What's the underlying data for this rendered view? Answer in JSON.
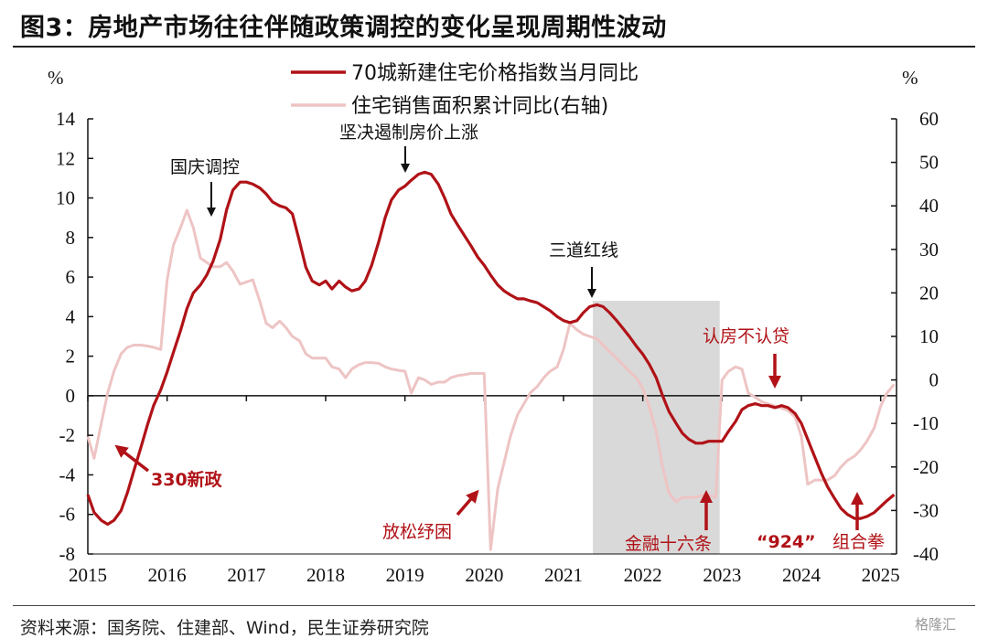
{
  "title": "图3：房地产市场往往伴随政策调控的变化呈现周期性波动",
  "source": "资料来源：国务院、住建部、Wind，民生证券研究院",
  "watermark": "格隆汇",
  "colors": {
    "primary": "#b01217",
    "secondary": "#eec4c4",
    "shade": "#d9d9d9",
    "axis": "#111111"
  },
  "chart_data": {
    "type": "line",
    "title": "图3：房地产市场往往伴随政策调控的变化呈现周期性波动",
    "left_unit": "%",
    "right_unit": "%",
    "left_ylim": [
      -8,
      14
    ],
    "right_ylim": [
      -40,
      60
    ],
    "left_ticks": [
      14,
      12,
      10,
      8,
      6,
      4,
      2,
      0,
      -2,
      -4,
      -6,
      -8
    ],
    "right_ticks": [
      60,
      50,
      40,
      30,
      20,
      10,
      0,
      -10,
      -20,
      -30,
      -40
    ],
    "xlim": [
      2015,
      2025.2
    ],
    "x_ticks": [
      2015,
      2016,
      2017,
      2018,
      2019,
      2020,
      2021,
      2022,
      2023,
      2024,
      2025
    ],
    "x_tick_labels": [
      "2015",
      "2016",
      "2017",
      "2018",
      "2019",
      "2020",
      "2021",
      "2022",
      "2023",
      "2024",
      "2025"
    ],
    "shaded_region": [
      2021.37,
      2022.97
    ],
    "series": [
      {
        "name": "70城新建住宅价格指数当月同比",
        "axis": "left",
        "color": "#b01217",
        "points": [
          [
            2015.0,
            -5.0
          ],
          [
            2015.08,
            -5.9
          ],
          [
            2015.17,
            -6.3
          ],
          [
            2015.25,
            -6.5
          ],
          [
            2015.33,
            -6.3
          ],
          [
            2015.42,
            -5.8
          ],
          [
            2015.5,
            -4.9
          ],
          [
            2015.58,
            -3.8
          ],
          [
            2015.67,
            -2.6
          ],
          [
            2015.75,
            -1.5
          ],
          [
            2015.83,
            -0.5
          ],
          [
            2015.92,
            0.3
          ],
          [
            2016.0,
            1.2
          ],
          [
            2016.08,
            2.2
          ],
          [
            2016.17,
            3.3
          ],
          [
            2016.25,
            4.4
          ],
          [
            2016.33,
            5.2
          ],
          [
            2016.42,
            5.6
          ],
          [
            2016.5,
            6.1
          ],
          [
            2016.58,
            6.8
          ],
          [
            2016.67,
            7.9
          ],
          [
            2016.75,
            9.4
          ],
          [
            2016.83,
            10.4
          ],
          [
            2016.92,
            10.8
          ],
          [
            2017.0,
            10.8
          ],
          [
            2017.08,
            10.7
          ],
          [
            2017.17,
            10.5
          ],
          [
            2017.25,
            10.2
          ],
          [
            2017.33,
            9.8
          ],
          [
            2017.42,
            9.6
          ],
          [
            2017.5,
            9.5
          ],
          [
            2017.58,
            9.2
          ],
          [
            2017.67,
            7.8
          ],
          [
            2017.75,
            6.5
          ],
          [
            2017.83,
            5.8
          ],
          [
            2017.92,
            5.6
          ],
          [
            2018.0,
            5.8
          ],
          [
            2018.08,
            5.4
          ],
          [
            2018.17,
            5.8
          ],
          [
            2018.25,
            5.5
          ],
          [
            2018.33,
            5.3
          ],
          [
            2018.42,
            5.4
          ],
          [
            2018.5,
            5.8
          ],
          [
            2018.58,
            6.6
          ],
          [
            2018.67,
            7.8
          ],
          [
            2018.75,
            9.0
          ],
          [
            2018.83,
            9.9
          ],
          [
            2018.92,
            10.4
          ],
          [
            2019.0,
            10.6
          ],
          [
            2019.08,
            10.9
          ],
          [
            2019.17,
            11.2
          ],
          [
            2019.25,
            11.3
          ],
          [
            2019.33,
            11.2
          ],
          [
            2019.42,
            10.7
          ],
          [
            2019.5,
            10.0
          ],
          [
            2019.58,
            9.2
          ],
          [
            2019.67,
            8.6
          ],
          [
            2019.75,
            8.1
          ],
          [
            2019.83,
            7.6
          ],
          [
            2019.92,
            7.0
          ],
          [
            2020.0,
            6.6
          ],
          [
            2020.08,
            6.1
          ],
          [
            2020.17,
            5.6
          ],
          [
            2020.25,
            5.3
          ],
          [
            2020.33,
            5.1
          ],
          [
            2020.42,
            4.9
          ],
          [
            2020.5,
            4.9
          ],
          [
            2020.58,
            4.8
          ],
          [
            2020.67,
            4.7
          ],
          [
            2020.75,
            4.5
          ],
          [
            2020.83,
            4.3
          ],
          [
            2020.92,
            4.0
          ],
          [
            2021.0,
            3.8
          ],
          [
            2021.08,
            3.7
          ],
          [
            2021.17,
            3.8
          ],
          [
            2021.25,
            4.2
          ],
          [
            2021.33,
            4.5
          ],
          [
            2021.42,
            4.6
          ],
          [
            2021.5,
            4.5
          ],
          [
            2021.58,
            4.2
          ],
          [
            2021.67,
            3.8
          ],
          [
            2021.75,
            3.4
          ],
          [
            2021.83,
            3.0
          ],
          [
            2021.92,
            2.5
          ],
          [
            2022.0,
            2.1
          ],
          [
            2022.08,
            1.6
          ],
          [
            2022.17,
            0.9
          ],
          [
            2022.25,
            0.0
          ],
          [
            2022.33,
            -0.8
          ],
          [
            2022.42,
            -1.4
          ],
          [
            2022.5,
            -1.9
          ],
          [
            2022.58,
            -2.2
          ],
          [
            2022.67,
            -2.4
          ],
          [
            2022.75,
            -2.4
          ],
          [
            2022.83,
            -2.3
          ],
          [
            2022.92,
            -2.3
          ],
          [
            2023.0,
            -2.3
          ],
          [
            2023.08,
            -1.8
          ],
          [
            2023.17,
            -1.3
          ],
          [
            2023.25,
            -0.7
          ],
          [
            2023.33,
            -0.5
          ],
          [
            2023.42,
            -0.4
          ],
          [
            2023.5,
            -0.5
          ],
          [
            2023.58,
            -0.5
          ],
          [
            2023.67,
            -0.6
          ],
          [
            2023.75,
            -0.5
          ],
          [
            2023.83,
            -0.6
          ],
          [
            2023.92,
            -0.9
          ],
          [
            2024.0,
            -1.4
          ],
          [
            2024.08,
            -2.2
          ],
          [
            2024.17,
            -3.1
          ],
          [
            2024.25,
            -3.9
          ],
          [
            2024.33,
            -4.6
          ],
          [
            2024.42,
            -5.2
          ],
          [
            2024.5,
            -5.7
          ],
          [
            2024.58,
            -6.0
          ],
          [
            2024.67,
            -6.2
          ],
          [
            2024.75,
            -6.2
          ],
          [
            2024.83,
            -6.1
          ],
          [
            2024.92,
            -5.9
          ],
          [
            2025.0,
            -5.6
          ],
          [
            2025.08,
            -5.3
          ],
          [
            2025.17,
            -5.0
          ]
        ]
      },
      {
        "name": "住宅销售面积累计同比(右轴)",
        "axis": "right",
        "color": "#eec4c4",
        "points": [
          [
            2015.0,
            -13
          ],
          [
            2015.08,
            -18
          ],
          [
            2015.17,
            -10
          ],
          [
            2015.25,
            -3
          ],
          [
            2015.33,
            2
          ],
          [
            2015.42,
            6
          ],
          [
            2015.5,
            7.5
          ],
          [
            2015.58,
            8
          ],
          [
            2015.67,
            8
          ],
          [
            2015.75,
            7.8
          ],
          [
            2015.83,
            7.5
          ],
          [
            2015.92,
            7
          ],
          [
            2016.0,
            23
          ],
          [
            2016.08,
            31
          ],
          [
            2016.17,
            35
          ],
          [
            2016.25,
            39
          ],
          [
            2016.33,
            35
          ],
          [
            2016.42,
            28
          ],
          [
            2016.5,
            27
          ],
          [
            2016.58,
            26
          ],
          [
            2016.67,
            26
          ],
          [
            2016.75,
            27
          ],
          [
            2016.83,
            25
          ],
          [
            2016.92,
            22
          ],
          [
            2017.0,
            22.5
          ],
          [
            2017.08,
            23
          ],
          [
            2017.17,
            18
          ],
          [
            2017.25,
            13
          ],
          [
            2017.33,
            12
          ],
          [
            2017.42,
            13.5
          ],
          [
            2017.5,
            12
          ],
          [
            2017.58,
            10
          ],
          [
            2017.67,
            9
          ],
          [
            2017.75,
            6
          ],
          [
            2017.83,
            5
          ],
          [
            2017.92,
            5
          ],
          [
            2018.0,
            5
          ],
          [
            2018.08,
            3
          ],
          [
            2018.17,
            2.5
          ],
          [
            2018.25,
            0.5
          ],
          [
            2018.33,
            2.5
          ],
          [
            2018.42,
            3.5
          ],
          [
            2018.5,
            4
          ],
          [
            2018.58,
            4
          ],
          [
            2018.67,
            3.8
          ],
          [
            2018.75,
            3
          ],
          [
            2018.83,
            2.5
          ],
          [
            2018.92,
            2.2
          ],
          [
            2019.0,
            2
          ],
          [
            2019.08,
            -3
          ],
          [
            2019.17,
            0.5
          ],
          [
            2019.25,
            0
          ],
          [
            2019.33,
            -1
          ],
          [
            2019.42,
            -0.5
          ],
          [
            2019.5,
            -0.5
          ],
          [
            2019.58,
            0.5
          ],
          [
            2019.67,
            1
          ],
          [
            2019.75,
            1.2
          ],
          [
            2019.83,
            1.5
          ],
          [
            2019.92,
            1.5
          ],
          [
            2020.0,
            1.5
          ],
          [
            2020.08,
            -39
          ],
          [
            2020.17,
            -25
          ],
          [
            2020.25,
            -19
          ],
          [
            2020.33,
            -13
          ],
          [
            2020.42,
            -8
          ],
          [
            2020.5,
            -5.5
          ],
          [
            2020.58,
            -3
          ],
          [
            2020.67,
            -1.5
          ],
          [
            2020.75,
            0.5
          ],
          [
            2020.83,
            2
          ],
          [
            2020.92,
            3
          ],
          [
            2021.0,
            7
          ],
          [
            2021.08,
            13
          ],
          [
            2021.17,
            11.5
          ],
          [
            2021.25,
            10.5
          ],
          [
            2021.33,
            10
          ],
          [
            2021.42,
            9.5
          ],
          [
            2021.5,
            8
          ],
          [
            2021.58,
            6.5
          ],
          [
            2021.67,
            5
          ],
          [
            2021.75,
            3.5
          ],
          [
            2021.83,
            2
          ],
          [
            2021.92,
            0.5
          ],
          [
            2022.0,
            -2
          ],
          [
            2022.08,
            -6
          ],
          [
            2022.17,
            -12
          ],
          [
            2022.25,
            -20
          ],
          [
            2022.33,
            -26
          ],
          [
            2022.42,
            -28
          ],
          [
            2022.5,
            -27
          ],
          [
            2022.58,
            -27
          ],
          [
            2022.67,
            -27
          ],
          [
            2022.75,
            -26.5
          ],
          [
            2022.83,
            -26.5
          ],
          [
            2022.92,
            -27
          ],
          [
            2023.0,
            0
          ],
          [
            2023.08,
            2
          ],
          [
            2023.17,
            3
          ],
          [
            2023.25,
            2.5
          ],
          [
            2023.33,
            -3
          ],
          [
            2023.42,
            -4
          ],
          [
            2023.5,
            -5
          ],
          [
            2023.58,
            -5.5
          ],
          [
            2023.67,
            -6
          ],
          [
            2023.75,
            -6.5
          ],
          [
            2023.83,
            -7
          ],
          [
            2023.92,
            -8.5
          ],
          [
            2024.0,
            -13
          ],
          [
            2024.08,
            -24
          ],
          [
            2024.17,
            -23
          ],
          [
            2024.25,
            -23
          ],
          [
            2024.33,
            -23
          ],
          [
            2024.42,
            -22
          ],
          [
            2024.5,
            -20
          ],
          [
            2024.58,
            -18.5
          ],
          [
            2024.67,
            -17.5
          ],
          [
            2024.75,
            -16
          ],
          [
            2024.83,
            -14
          ],
          [
            2024.92,
            -11
          ],
          [
            2025.0,
            -6
          ],
          [
            2025.08,
            -3
          ],
          [
            2025.17,
            -1
          ]
        ]
      }
    ],
    "annotations": [
      {
        "id": "330",
        "text": "330新政",
        "color": "red"
      },
      {
        "id": "guoqing",
        "text": "国庆调控",
        "color": "black"
      },
      {
        "id": "jianjue",
        "text": "坚决遏制房价上涨",
        "color": "black"
      },
      {
        "id": "fangsong",
        "text": "放松纾困",
        "color": "red"
      },
      {
        "id": "sandao",
        "text": "三道红线",
        "color": "black"
      },
      {
        "id": "jinrong",
        "text": "金融十六条",
        "color": "red"
      },
      {
        "id": "renfang",
        "text": "认房不认贷",
        "color": "red"
      },
      {
        "id": "924_q",
        "text": "“924”",
        "color": "red"
      },
      {
        "id": "924_t",
        "text": "组合拳",
        "color": "red"
      }
    ]
  }
}
